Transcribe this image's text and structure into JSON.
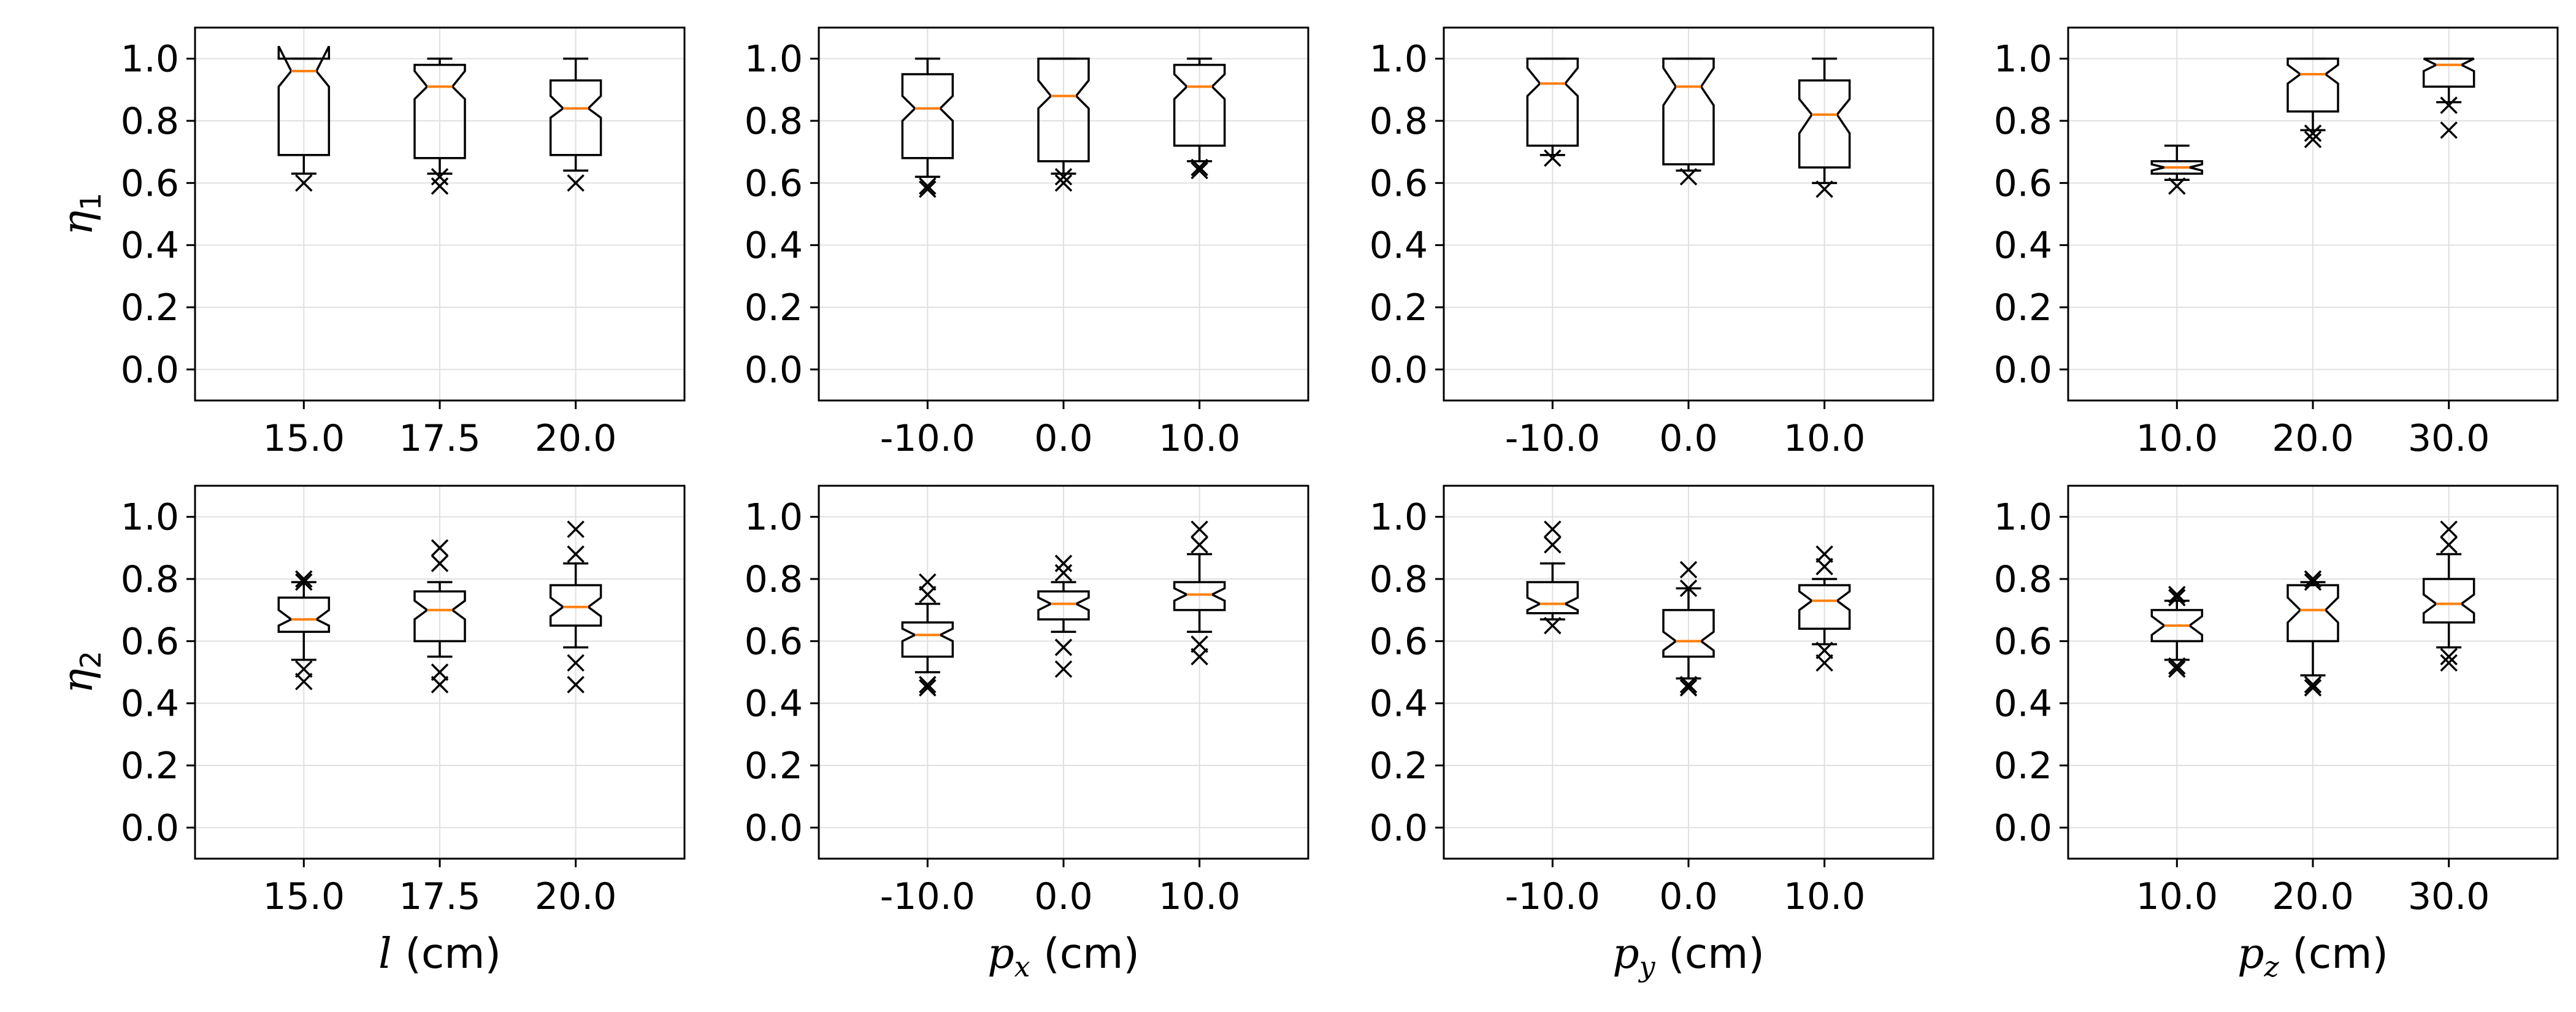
{
  "chart_data": [
    {
      "type": "box",
      "row": 0,
      "col": 0,
      "ylabel": "η1",
      "xlabel": "",
      "categories": [
        "15.0",
        "17.5",
        "20.0"
      ],
      "ylim": [
        -0.1,
        1.1
      ],
      "yticks": [
        "0.0",
        "0.2",
        "0.4",
        "0.6",
        "0.8",
        "1.0"
      ],
      "boxes": [
        {
          "q1": 0.69,
          "median": 0.96,
          "q3": 1.0,
          "whislo": 0.63,
          "whishi": 1.0,
          "notchlo": 0.91,
          "notchhi": 1.04,
          "fliers": [
            0.6
          ]
        },
        {
          "q1": 0.68,
          "median": 0.91,
          "q3": 0.98,
          "whislo": 0.63,
          "whishi": 1.0,
          "notchlo": 0.87,
          "notchhi": 0.96,
          "fliers": [
            0.62,
            0.59
          ]
        },
        {
          "q1": 0.69,
          "median": 0.84,
          "q3": 0.93,
          "whislo": 0.64,
          "whishi": 1.0,
          "notchlo": 0.81,
          "notchhi": 0.88,
          "fliers": [
            0.6
          ]
        }
      ],
      "grid": true
    },
    {
      "type": "box",
      "row": 0,
      "col": 1,
      "ylabel": "",
      "xlabel": "",
      "categories": [
        "-10.0",
        "0.0",
        "10.0"
      ],
      "ylim": [
        -0.1,
        1.1
      ],
      "yticks": [
        "0.0",
        "0.2",
        "0.4",
        "0.6",
        "0.8",
        "1.0"
      ],
      "boxes": [
        {
          "q1": 0.68,
          "median": 0.84,
          "q3": 0.95,
          "whislo": 0.62,
          "whishi": 1.0,
          "notchlo": 0.8,
          "notchhi": 0.88,
          "fliers": [
            0.59,
            0.58
          ]
        },
        {
          "q1": 0.67,
          "median": 0.88,
          "q3": 1.0,
          "whislo": 0.63,
          "whishi": 1.0,
          "notchlo": 0.84,
          "notchhi": 0.93,
          "fliers": [
            0.62,
            0.6
          ]
        },
        {
          "q1": 0.72,
          "median": 0.91,
          "q3": 0.98,
          "whislo": 0.67,
          "whishi": 1.0,
          "notchlo": 0.87,
          "notchhi": 0.95,
          "fliers": [
            0.65,
            0.64
          ]
        }
      ],
      "grid": true
    },
    {
      "type": "box",
      "row": 0,
      "col": 2,
      "ylabel": "",
      "xlabel": "",
      "categories": [
        "-10.0",
        "0.0",
        "10.0"
      ],
      "ylim": [
        -0.1,
        1.1
      ],
      "yticks": [
        "0.0",
        "0.2",
        "0.4",
        "0.6",
        "0.8",
        "1.0"
      ],
      "boxes": [
        {
          "q1": 0.72,
          "median": 0.92,
          "q3": 1.0,
          "whislo": 0.69,
          "whishi": 1.0,
          "notchlo": 0.88,
          "notchhi": 0.97,
          "fliers": [
            0.68
          ]
        },
        {
          "q1": 0.66,
          "median": 0.91,
          "q3": 1.0,
          "whislo": 0.64,
          "whishi": 1.0,
          "notchlo": 0.85,
          "notchhi": 0.97,
          "fliers": [
            0.62
          ]
        },
        {
          "q1": 0.65,
          "median": 0.82,
          "q3": 0.93,
          "whislo": 0.6,
          "whishi": 1.0,
          "notchlo": 0.76,
          "notchhi": 0.87,
          "fliers": [
            0.58
          ]
        }
      ],
      "grid": true
    },
    {
      "type": "box",
      "row": 0,
      "col": 3,
      "ylabel": "",
      "xlabel": "",
      "categories": [
        "10.0",
        "20.0",
        "30.0"
      ],
      "ylim": [
        -0.1,
        1.1
      ],
      "yticks": [
        "0.0",
        "0.2",
        "0.4",
        "0.6",
        "0.8",
        "1.0"
      ],
      "boxes": [
        {
          "q1": 0.63,
          "median": 0.65,
          "q3": 0.67,
          "whislo": 0.61,
          "whishi": 0.72,
          "notchlo": 0.64,
          "notchhi": 0.66,
          "fliers": [
            0.59
          ]
        },
        {
          "q1": 0.83,
          "median": 0.95,
          "q3": 1.0,
          "whislo": 0.77,
          "whishi": 1.0,
          "notchlo": 0.92,
          "notchhi": 0.98,
          "fliers": [
            0.76,
            0.74
          ]
        },
        {
          "q1": 0.91,
          "median": 0.98,
          "q3": 1.0,
          "whislo": 0.86,
          "whishi": 1.0,
          "notchlo": 0.96,
          "notchhi": 1.0,
          "fliers": [
            0.85,
            0.77
          ]
        }
      ],
      "grid": true
    },
    {
      "type": "box",
      "row": 1,
      "col": 0,
      "ylabel": "η2",
      "xlabel": "l (cm)",
      "xlabel_parts": {
        "italic": "l",
        "rest": " (cm)",
        "sub": ""
      },
      "categories": [
        "15.0",
        "17.5",
        "20.0"
      ],
      "ylim": [
        -0.1,
        1.1
      ],
      "yticks": [
        "0.0",
        "0.2",
        "0.4",
        "0.6",
        "0.8",
        "1.0"
      ],
      "boxes": [
        {
          "q1": 0.63,
          "median": 0.67,
          "q3": 0.74,
          "whislo": 0.54,
          "whishi": 0.79,
          "notchlo": 0.65,
          "notchhi": 0.7,
          "fliers": [
            0.8,
            0.79,
            0.51,
            0.47
          ]
        },
        {
          "q1": 0.6,
          "median": 0.7,
          "q3": 0.76,
          "whislo": 0.55,
          "whishi": 0.79,
          "notchlo": 0.67,
          "notchhi": 0.73,
          "fliers": [
            0.9,
            0.85,
            0.5,
            0.46
          ]
        },
        {
          "q1": 0.65,
          "median": 0.71,
          "q3": 0.78,
          "whislo": 0.58,
          "whishi": 0.85,
          "notchlo": 0.68,
          "notchhi": 0.74,
          "fliers": [
            0.96,
            0.88,
            0.53,
            0.46
          ]
        }
      ],
      "grid": true
    },
    {
      "type": "box",
      "row": 1,
      "col": 1,
      "ylabel": "",
      "xlabel": "px (cm)",
      "xlabel_parts": {
        "italic": "p",
        "rest": " (cm)",
        "sub": "x"
      },
      "categories": [
        "-10.0",
        "0.0",
        "10.0"
      ],
      "ylim": [
        -0.1,
        1.1
      ],
      "yticks": [
        "0.0",
        "0.2",
        "0.4",
        "0.6",
        "0.8",
        "1.0"
      ],
      "boxes": [
        {
          "q1": 0.55,
          "median": 0.62,
          "q3": 0.66,
          "whislo": 0.5,
          "whishi": 0.72,
          "notchlo": 0.6,
          "notchhi": 0.64,
          "fliers": [
            0.79,
            0.75,
            0.46,
            0.45
          ]
        },
        {
          "q1": 0.67,
          "median": 0.72,
          "q3": 0.76,
          "whislo": 0.63,
          "whishi": 0.79,
          "notchlo": 0.7,
          "notchhi": 0.74,
          "fliers": [
            0.85,
            0.82,
            0.58,
            0.51
          ]
        },
        {
          "q1": 0.7,
          "median": 0.75,
          "q3": 0.79,
          "whislo": 0.63,
          "whishi": 0.88,
          "notchlo": 0.73,
          "notchhi": 0.77,
          "fliers": [
            0.96,
            0.91,
            0.59,
            0.55
          ]
        }
      ],
      "grid": true
    },
    {
      "type": "box",
      "row": 1,
      "col": 2,
      "ylabel": "",
      "xlabel": "py (cm)",
      "xlabel_parts": {
        "italic": "p",
        "rest": " (cm)",
        "sub": "y"
      },
      "categories": [
        "-10.0",
        "0.0",
        "10.0"
      ],
      "ylim": [
        -0.1,
        1.1
      ],
      "yticks": [
        "0.0",
        "0.2",
        "0.4",
        "0.6",
        "0.8",
        "1.0"
      ],
      "boxes": [
        {
          "q1": 0.69,
          "median": 0.72,
          "q3": 0.79,
          "whislo": 0.67,
          "whishi": 0.85,
          "notchlo": 0.7,
          "notchhi": 0.74,
          "fliers": [
            0.96,
            0.91,
            0.65
          ]
        },
        {
          "q1": 0.55,
          "median": 0.6,
          "q3": 0.7,
          "whislo": 0.48,
          "whishi": 0.77,
          "notchlo": 0.57,
          "notchhi": 0.63,
          "fliers": [
            0.83,
            0.77,
            0.46,
            0.45
          ]
        },
        {
          "q1": 0.64,
          "median": 0.73,
          "q3": 0.78,
          "whislo": 0.59,
          "whishi": 0.8,
          "notchlo": 0.7,
          "notchhi": 0.76,
          "fliers": [
            0.88,
            0.84,
            0.57,
            0.53
          ]
        }
      ],
      "grid": true
    },
    {
      "type": "box",
      "row": 1,
      "col": 3,
      "ylabel": "",
      "xlabel": "pz (cm)",
      "xlabel_parts": {
        "italic": "p",
        "rest": " (cm)",
        "sub": "z"
      },
      "categories": [
        "10.0",
        "20.0",
        "30.0"
      ],
      "ylim": [
        -0.1,
        1.1
      ],
      "yticks": [
        "0.0",
        "0.2",
        "0.4",
        "0.6",
        "0.8",
        "1.0"
      ],
      "boxes": [
        {
          "q1": 0.6,
          "median": 0.65,
          "q3": 0.7,
          "whislo": 0.54,
          "whishi": 0.73,
          "notchlo": 0.62,
          "notchhi": 0.68,
          "fliers": [
            0.75,
            0.74,
            0.52,
            0.51
          ]
        },
        {
          "q1": 0.6,
          "median": 0.7,
          "q3": 0.78,
          "whislo": 0.49,
          "whishi": 0.79,
          "notchlo": 0.66,
          "notchhi": 0.74,
          "fliers": [
            0.8,
            0.79,
            0.46,
            0.45
          ]
        },
        {
          "q1": 0.66,
          "median": 0.72,
          "q3": 0.8,
          "whislo": 0.58,
          "whishi": 0.88,
          "notchlo": 0.69,
          "notchhi": 0.75,
          "fliers": [
            0.96,
            0.91,
            0.55,
            0.53
          ]
        }
      ],
      "grid": true
    }
  ],
  "style": {
    "box_color": "#000000",
    "median_color": "#ff7f0e",
    "grid_color": "#e0e0e0",
    "flier_marker": "x"
  }
}
